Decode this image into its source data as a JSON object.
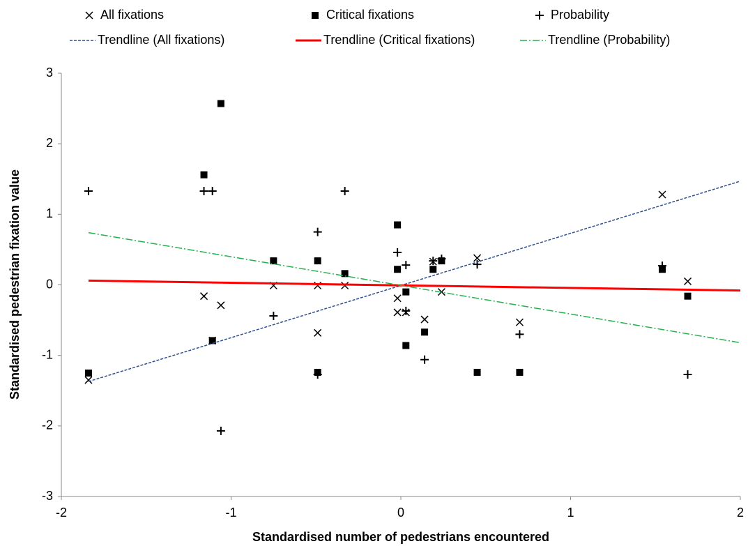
{
  "chart_data": {
    "type": "scatter",
    "xlabel": "Standardised number of pedestrians encountered",
    "ylabel": "Standardised pedestrian fixation value",
    "xlim": [
      -2,
      2
    ],
    "xticks": [
      -2,
      -1,
      0,
      1,
      2
    ],
    "ylim": [
      -3,
      3
    ],
    "yticks": [
      -3,
      -2,
      -1,
      0,
      1,
      2,
      3
    ],
    "grid": false,
    "legend": "top",
    "series": [
      {
        "name": "All fixations",
        "color": "#000000",
        "marker": "x",
        "x": [
          -1.84,
          -1.16,
          -1.06,
          -1.11,
          -0.75,
          -0.49,
          -0.49,
          -0.33,
          -0.02,
          -0.02,
          0.03,
          0.14,
          0.24,
          0.19,
          0.45,
          0.7,
          1.54,
          1.69
        ],
        "values": [
          -1.35,
          -0.16,
          -0.29,
          -0.79,
          -0.01,
          -0.01,
          -0.68,
          -0.01,
          -0.19,
          -0.39,
          -0.39,
          -0.49,
          -0.1,
          0.33,
          0.38,
          -0.53,
          1.28,
          0.05
        ]
      },
      {
        "name": "Critical fixations",
        "color": "#000000",
        "marker": "square",
        "x": [
          -1.84,
          -1.16,
          -1.11,
          -1.06,
          -0.75,
          -0.49,
          -0.49,
          -0.33,
          -0.02,
          -0.02,
          0.03,
          0.03,
          0.14,
          0.19,
          0.24,
          0.45,
          0.7,
          1.54,
          1.69
        ],
        "values": [
          -1.25,
          1.56,
          -0.79,
          2.57,
          0.34,
          0.34,
          -1.24,
          0.16,
          0.85,
          0.22,
          -0.1,
          -0.86,
          -0.67,
          0.22,
          0.34,
          -1.24,
          -1.24,
          0.22,
          -0.16
        ]
      },
      {
        "name": "Probability",
        "color": "#000000",
        "marker": "plus",
        "x": [
          -1.84,
          -1.16,
          -1.11,
          -1.06,
          -0.75,
          -0.49,
          -0.49,
          -0.33,
          -0.02,
          0.03,
          0.03,
          0.14,
          0.19,
          0.24,
          0.45,
          0.7,
          1.54,
          1.69
        ],
        "values": [
          1.33,
          1.33,
          1.33,
          -2.07,
          -0.44,
          0.75,
          -1.27,
          1.33,
          0.46,
          0.28,
          -0.37,
          -1.06,
          0.34,
          0.37,
          0.29,
          -0.7,
          0.27,
          -1.27
        ]
      },
      {
        "name": "Trendline (All fixations)",
        "color": "#2f4f8f",
        "marker": "line",
        "dash": "dashed",
        "x": [
          -1.84,
          2
        ],
        "values": [
          -1.37,
          1.47
        ]
      },
      {
        "name": "Trendline (Critical fixations)",
        "color": "#ff0000",
        "marker": "line",
        "dash": "solid",
        "x": [
          -1.84,
          2
        ],
        "values": [
          0.06,
          -0.08
        ]
      },
      {
        "name": "Trendline (Probability)",
        "color": "#22b24c",
        "marker": "line",
        "dash": "dashdot",
        "x": [
          -1.84,
          2
        ],
        "values": [
          0.74,
          -0.82
        ]
      }
    ]
  }
}
